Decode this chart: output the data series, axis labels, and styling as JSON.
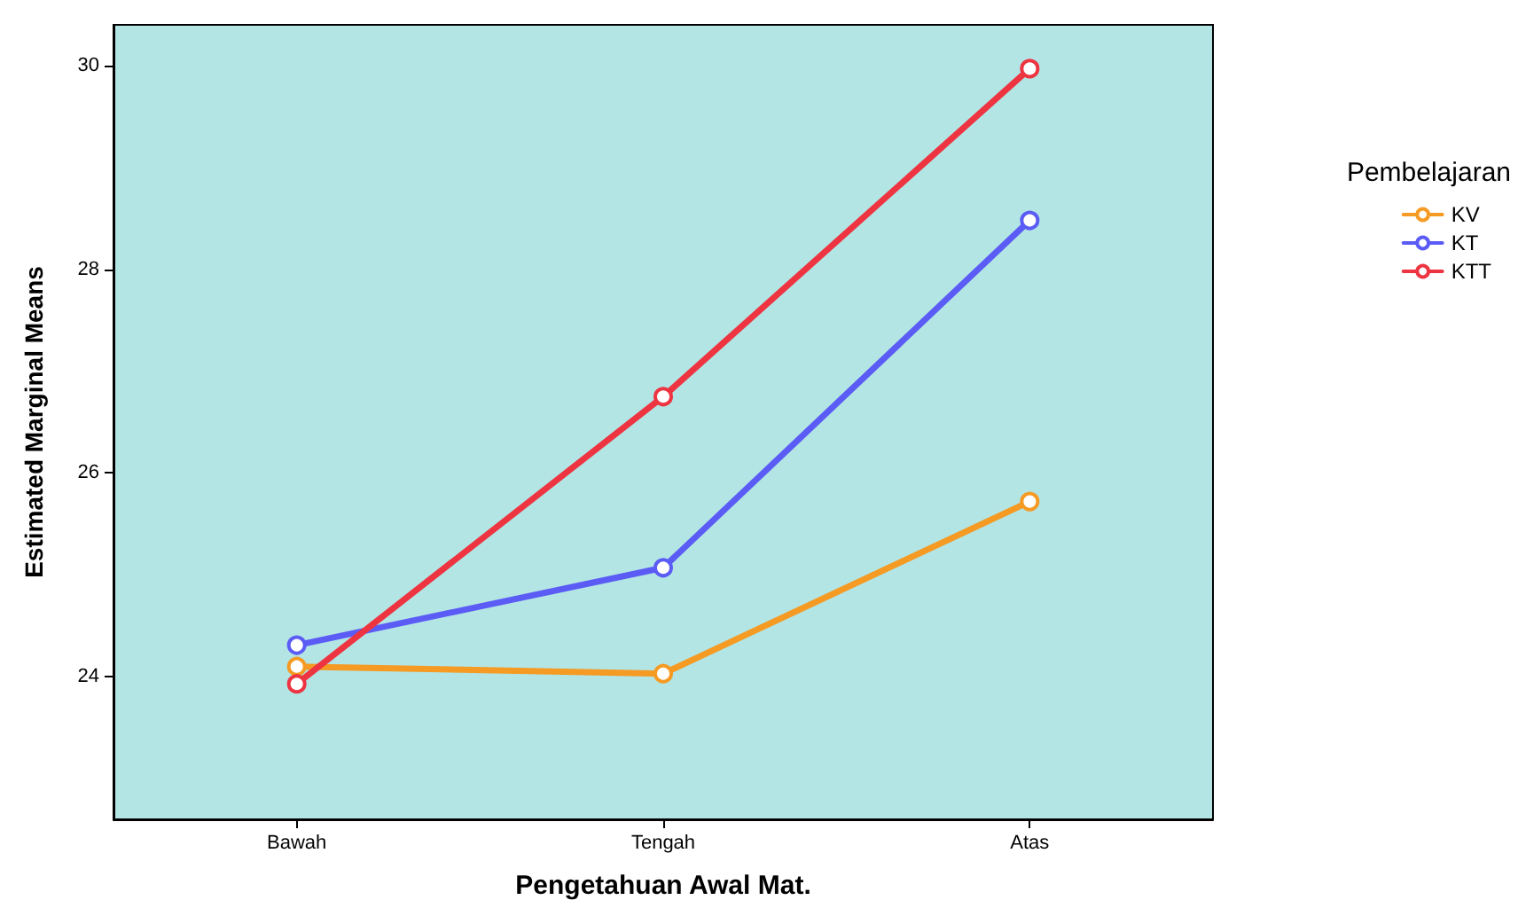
{
  "chart_data": {
    "type": "line",
    "xlabel": "Pengetahuan Awal Mat.",
    "ylabel": "Estimated Marginal Means",
    "legend_title": "Pembelajaran",
    "categories": [
      "Bawah",
      "Tengah",
      "Atas"
    ],
    "series": [
      {
        "name": "KV",
        "color": "#f59a23",
        "values": [
          24.1,
          24.03,
          25.72
        ]
      },
      {
        "name": "KT",
        "color": "#5b5bf5",
        "values": [
          24.31,
          25.07,
          28.48
        ]
      },
      {
        "name": "KTT",
        "color": "#ee3440",
        "values": [
          23.93,
          26.75,
          29.97
        ]
      }
    ],
    "ylim": [
      22.6,
      30.4
    ],
    "yticks": [
      24,
      26,
      28,
      30
    ],
    "grid": false,
    "legend": "right",
    "marker": "circle",
    "line_style": "solid"
  }
}
